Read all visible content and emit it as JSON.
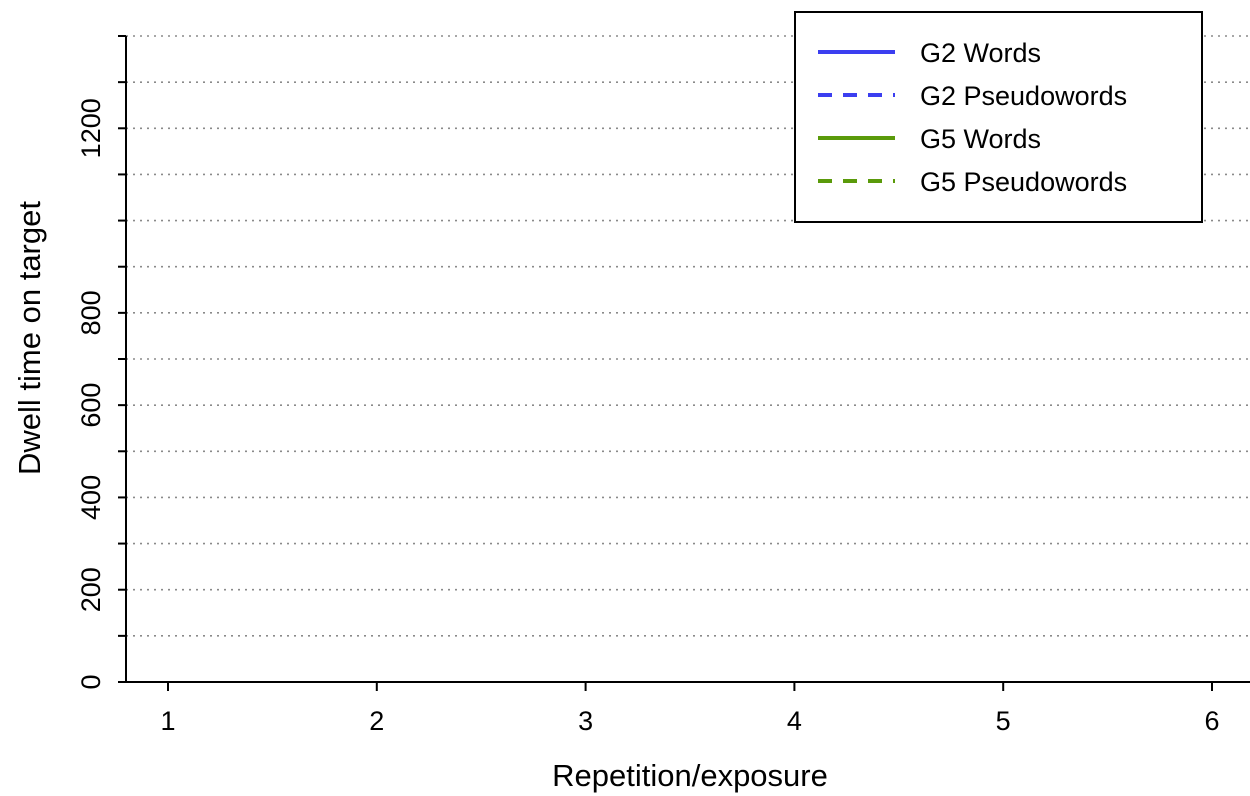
{
  "chart_data": {
    "type": "line",
    "title": "",
    "xlabel": "Repetition/exposure",
    "ylabel": "Dwell time on target",
    "x_ticks": [
      1,
      2,
      3,
      4,
      5,
      6
    ],
    "y_tick_positions": [
      0,
      100,
      200,
      300,
      400,
      500,
      600,
      700,
      800,
      900,
      1000,
      1100,
      1200,
      1300,
      1400
    ],
    "y_tick_labels": [
      {
        "value": 0,
        "label": "0"
      },
      {
        "value": 200,
        "label": "200"
      },
      {
        "value": 400,
        "label": "400"
      },
      {
        "value": 600,
        "label": "600"
      },
      {
        "value": 800,
        "label": "800"
      },
      {
        "value": 1200,
        "label": "1200"
      }
    ],
    "xlim": [
      0.8,
      6.2
    ],
    "ylim": [
      0,
      1400
    ],
    "grid": "horizontal-dotted",
    "legend_position": "top-right",
    "series": [
      {
        "name": "G2 Words",
        "color": "#3b3ef0",
        "linestyle": "solid",
        "values": []
      },
      {
        "name": "G2 Pseudowords",
        "color": "#3b3ef0",
        "linestyle": "dashed",
        "values": []
      },
      {
        "name": "G5 Words",
        "color": "#5a9a0a",
        "linestyle": "solid",
        "values": []
      },
      {
        "name": "G5 Pseudowords",
        "color": "#5a9a0a",
        "linestyle": "dashed",
        "values": []
      }
    ]
  }
}
